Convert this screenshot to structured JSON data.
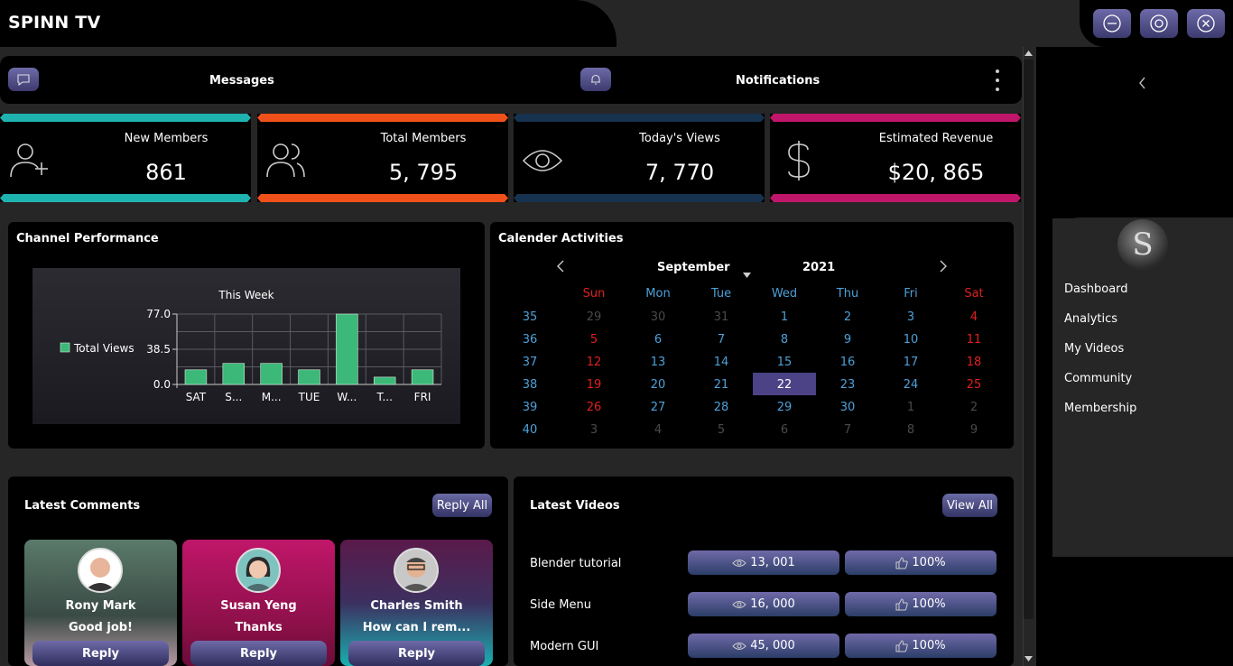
{
  "app": {
    "title": "SPINN TV"
  },
  "topbar": {
    "messages": "Messages",
    "notifications": "Notifications"
  },
  "stats": [
    {
      "label": "New Members",
      "value": "861",
      "color": "#1fb3b0",
      "icon": "add-user-icon"
    },
    {
      "label": "Total Members",
      "value": "5, 795",
      "color": "#f0501a",
      "icon": "users-icon"
    },
    {
      "label": "Today's Views",
      "value": "7, 770",
      "color": "#17324f",
      "icon": "eye-icon"
    },
    {
      "label": "Estimated Revenue",
      "value": "$20, 865",
      "color": "#c0166a",
      "icon": "dollar-icon"
    }
  ],
  "channel": {
    "title": "Channel Performance",
    "chart_data": {
      "type": "bar",
      "title": "This Week",
      "categories": [
        "SAT",
        "S...",
        "M...",
        "TUE",
        "W...",
        "T...",
        "FRI"
      ],
      "series": [
        {
          "name": "Total Views",
          "values": [
            16,
            23,
            23,
            16,
            77,
            8,
            16
          ]
        }
      ],
      "ylim": [
        0,
        77
      ],
      "yticks": [
        "77.0",
        "38.5",
        "0.0"
      ],
      "legend": "left",
      "grid": true,
      "bar_color": "#3cb878"
    }
  },
  "calendar": {
    "title": "Calender Activities",
    "month": "September",
    "year": "2021",
    "days": [
      "Sun",
      "Mon",
      "Tue",
      "Wed",
      "Thu",
      "Fri",
      "Sat"
    ],
    "weeks": [
      {
        "num": "35",
        "d": [
          "29",
          "30",
          "31",
          "1",
          "2",
          "3",
          "4"
        ],
        "o": [
          1,
          1,
          1,
          0,
          0,
          0,
          0
        ]
      },
      {
        "num": "36",
        "d": [
          "5",
          "6",
          "7",
          "8",
          "9",
          "10",
          "11"
        ],
        "o": [
          0,
          0,
          0,
          0,
          0,
          0,
          0
        ]
      },
      {
        "num": "37",
        "d": [
          "12",
          "13",
          "14",
          "15",
          "16",
          "17",
          "18"
        ],
        "o": [
          0,
          0,
          0,
          0,
          0,
          0,
          0
        ]
      },
      {
        "num": "38",
        "d": [
          "19",
          "20",
          "21",
          "22",
          "23",
          "24",
          "25"
        ],
        "o": [
          0,
          0,
          0,
          0,
          0,
          0,
          0
        ]
      },
      {
        "num": "39",
        "d": [
          "26",
          "27",
          "28",
          "29",
          "30",
          "1",
          "2"
        ],
        "o": [
          0,
          0,
          0,
          0,
          0,
          1,
          1
        ]
      },
      {
        "num": "40",
        "d": [
          "3",
          "4",
          "5",
          "6",
          "7",
          "8",
          "9"
        ],
        "o": [
          1,
          1,
          1,
          1,
          1,
          1,
          1
        ]
      }
    ],
    "selected": "22"
  },
  "comments": {
    "title": "Latest Comments",
    "reply_all": "Reply All",
    "items": [
      {
        "name": "Rony Mark",
        "msg": "Good job!",
        "reply": "Reply"
      },
      {
        "name": "Susan Yeng",
        "msg": "Thanks",
        "reply": "Reply"
      },
      {
        "name": "Charles Smith",
        "msg": "How can I rem...",
        "reply": "Reply"
      }
    ]
  },
  "videos": {
    "title": "Latest Videos",
    "view_all": "View All",
    "items": [
      {
        "name": "Blender tutorial",
        "views": "13, 001",
        "likes": "100%"
      },
      {
        "name": "Side Menu",
        "views": "16, 000",
        "likes": "100%"
      },
      {
        "name": "Modern GUI",
        "views": "45, 000",
        "likes": "100%"
      }
    ]
  },
  "sidebar": {
    "logo_letter": "S",
    "items": [
      {
        "label": "Dashboard"
      },
      {
        "label": "Analytics"
      },
      {
        "label": "My Videos"
      },
      {
        "label": "Community"
      },
      {
        "label": "Membership"
      }
    ]
  }
}
